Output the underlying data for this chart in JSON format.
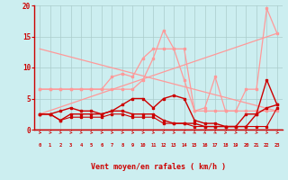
{
  "x": [
    0,
    1,
    2,
    3,
    4,
    5,
    6,
    7,
    8,
    9,
    10,
    11,
    12,
    13,
    14,
    15,
    16,
    17,
    18,
    19,
    20,
    21,
    22,
    23
  ],
  "line_dark1": [
    2.5,
    2.5,
    3.0,
    3.5,
    3.0,
    3.0,
    2.5,
    3.0,
    4.0,
    5.0,
    5.0,
    3.5,
    5.0,
    5.5,
    5.0,
    1.5,
    1.0,
    1.0,
    0.5,
    0.5,
    2.5,
    2.5,
    8.0,
    4.0
  ],
  "line_dark2": [
    2.5,
    2.5,
    1.5,
    2.5,
    2.5,
    2.5,
    2.5,
    3.0,
    3.0,
    2.5,
    2.5,
    2.5,
    1.5,
    1.0,
    1.0,
    1.0,
    0.5,
    0.5,
    0.5,
    0.5,
    0.5,
    2.5,
    3.5,
    4.0
  ],
  "line_dark3": [
    2.5,
    2.5,
    1.5,
    2.0,
    2.0,
    2.0,
    2.0,
    2.5,
    2.5,
    2.0,
    2.0,
    2.0,
    1.0,
    1.0,
    1.0,
    0.5,
    0.5,
    0.5,
    0.5,
    0.5,
    0.5,
    0.5,
    0.5,
    3.5
  ],
  "line_light1": [
    6.5,
    6.5,
    6.5,
    6.5,
    6.5,
    6.5,
    6.5,
    8.5,
    9.0,
    8.5,
    11.5,
    13.0,
    13.0,
    13.0,
    13.0,
    3.0,
    3.5,
    8.5,
    3.0,
    3.0,
    6.5,
    6.5,
    19.5,
    15.5
  ],
  "line_light2": [
    6.5,
    6.5,
    6.5,
    6.5,
    6.5,
    6.5,
    6.5,
    6.5,
    6.5,
    6.5,
    8.0,
    11.5,
    16.0,
    13.0,
    8.0,
    3.0,
    3.0,
    3.0,
    3.0,
    3.0,
    3.0,
    3.0,
    3.0,
    3.0
  ],
  "trend1_x": [
    0,
    23
  ],
  "trend1_y": [
    2.5,
    15.5
  ],
  "trend2_x": [
    0,
    23
  ],
  "trend2_y": [
    13.0,
    3.0
  ],
  "bg_color": "#cceef0",
  "grid_color": "#aacccc",
  "line_color_dark": "#cc0000",
  "line_color_light": "#ff9999",
  "xlabel": "Vent moyen/en rafales ( km/h )",
  "ylim": [
    0,
    20
  ],
  "xlim": [
    -0.5,
    23.5
  ],
  "yticks": [
    0,
    5,
    10,
    15,
    20
  ],
  "xticks": [
    0,
    1,
    2,
    3,
    4,
    5,
    6,
    7,
    8,
    9,
    10,
    11,
    12,
    13,
    14,
    15,
    16,
    17,
    18,
    19,
    20,
    21,
    22,
    23
  ]
}
